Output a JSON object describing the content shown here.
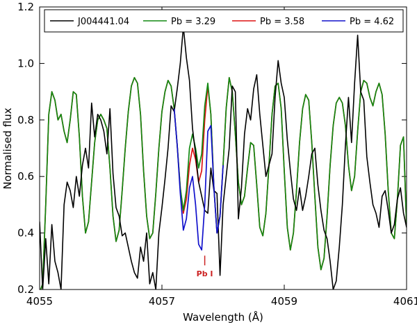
{
  "chart_data": {
    "type": "line",
    "xlabel": "Wavelength (Å)",
    "ylabel": "Normalised flux",
    "xlim": [
      4055,
      4061
    ],
    "ylim": [
      0.2,
      1.2
    ],
    "xticks": [
      4055,
      4057,
      4059,
      4061
    ],
    "xtick_labels": [
      "4055",
      "4057",
      "4059",
      "4061"
    ],
    "yticks": [
      0.2,
      0.4,
      0.6,
      0.8,
      1.0,
      1.2
    ],
    "ytick_labels": [
      "0.2",
      "0.4",
      "0.6",
      "0.8",
      "1.0",
      "1.2"
    ],
    "legend_position": "top",
    "annotation": {
      "text": "Pb I",
      "x": 4057.7,
      "y": 0.31,
      "color": "#cc2222"
    },
    "series": [
      {
        "name": "J004441.04",
        "color": "#000000",
        "x": [
          4055.0,
          4055.05,
          4055.1,
          4055.15,
          4055.2,
          4055.25,
          4055.3,
          4055.35,
          4055.4,
          4055.45,
          4055.5,
          4055.55,
          4055.6,
          4055.65,
          4055.7,
          4055.75,
          4055.8,
          4055.85,
          4055.9,
          4055.95,
          4056.0,
          4056.05,
          4056.1,
          4056.15,
          4056.2,
          4056.25,
          4056.3,
          4056.35,
          4056.4,
          4056.45,
          4056.5,
          4056.55,
          4056.6,
          4056.65,
          4056.7,
          4056.75,
          4056.8,
          4056.85,
          4056.9,
          4056.95,
          4057.0,
          4057.05,
          4057.1,
          4057.15,
          4057.2,
          4057.25,
          4057.3,
          4057.35,
          4057.4,
          4057.45,
          4057.5,
          4057.55,
          4057.6,
          4057.65,
          4057.7,
          4057.75,
          4057.8,
          4057.85,
          4057.9,
          4057.95,
          4058.0,
          4058.05,
          4058.1,
          4058.15,
          4058.2,
          4058.25,
          4058.3,
          4058.35,
          4058.4,
          4058.45,
          4058.5,
          4058.55,
          4058.6,
          4058.65,
          4058.7,
          4058.75,
          4058.8,
          4058.85,
          4058.9,
          4058.95,
          4059.0,
          4059.05,
          4059.1,
          4059.15,
          4059.2,
          4059.25,
          4059.3,
          4059.35,
          4059.4,
          4059.45,
          4059.5,
          4059.55,
          4059.6,
          4059.65,
          4059.7,
          4059.75,
          4059.8,
          4059.85,
          4059.9,
          4059.95,
          4060.0,
          4060.05,
          4060.1,
          4060.15,
          4060.2,
          4060.25,
          4060.3,
          4060.35,
          4060.4,
          4060.45,
          4060.5,
          4060.55,
          4060.6,
          4060.65,
          4060.7,
          4060.75,
          4060.8,
          4060.85,
          4060.9,
          4060.95,
          4061.0
        ],
        "y": [
          0.44,
          0.2,
          0.38,
          0.22,
          0.43,
          0.3,
          0.26,
          0.2,
          0.5,
          0.58,
          0.55,
          0.49,
          0.6,
          0.53,
          0.64,
          0.7,
          0.63,
          0.86,
          0.74,
          0.82,
          0.8,
          0.76,
          0.68,
          0.84,
          0.61,
          0.49,
          0.46,
          0.39,
          0.4,
          0.35,
          0.3,
          0.26,
          0.24,
          0.35,
          0.3,
          0.4,
          0.22,
          0.26,
          0.2,
          0.4,
          0.49,
          0.59,
          0.7,
          0.85,
          0.83,
          0.91,
          1.0,
          1.13,
          1.02,
          0.94,
          0.77,
          0.68,
          0.58,
          0.53,
          0.48,
          0.47,
          0.63,
          0.55,
          0.54,
          0.25,
          0.5,
          0.6,
          0.7,
          0.92,
          0.9,
          0.45,
          0.56,
          0.75,
          0.84,
          0.8,
          0.91,
          0.96,
          0.82,
          0.71,
          0.6,
          0.64,
          0.68,
          0.88,
          1.01,
          0.93,
          0.88,
          0.73,
          0.62,
          0.52,
          0.48,
          0.56,
          0.48,
          0.53,
          0.6,
          0.68,
          0.7,
          0.57,
          0.48,
          0.41,
          0.38,
          0.3,
          0.2,
          0.23,
          0.35,
          0.5,
          0.71,
          0.88,
          0.72,
          0.93,
          1.1,
          0.9,
          0.87,
          0.67,
          0.58,
          0.5,
          0.47,
          0.42,
          0.53,
          0.55,
          0.48,
          0.4,
          0.43,
          0.52,
          0.56,
          0.47,
          0.42
        ]
      },
      {
        "name": "Pb = 3.29",
        "color": "#118811",
        "x": [
          4055.0,
          4055.05,
          4055.1,
          4055.15,
          4055.2,
          4055.25,
          4055.3,
          4055.35,
          4055.4,
          4055.45,
          4055.5,
          4055.55,
          4055.6,
          4055.65,
          4055.7,
          4055.75,
          4055.8,
          4055.85,
          4055.9,
          4055.95,
          4056.0,
          4056.05,
          4056.1,
          4056.15,
          4056.2,
          4056.25,
          4056.3,
          4056.35,
          4056.4,
          4056.45,
          4056.5,
          4056.55,
          4056.6,
          4056.65,
          4056.7,
          4056.75,
          4056.8,
          4056.85,
          4056.9,
          4056.95,
          4057.0,
          4057.05,
          4057.1,
          4057.15,
          4057.2,
          4057.25,
          4057.3,
          4057.35,
          4057.4,
          4057.45,
          4057.5,
          4057.55,
          4057.6,
          4057.65,
          4057.7,
          4057.75,
          4057.8,
          4057.85,
          4057.9,
          4057.95,
          4058.0,
          4058.05,
          4058.1,
          4058.15,
          4058.2,
          4058.25,
          4058.3,
          4058.35,
          4058.4,
          4058.45,
          4058.5,
          4058.55,
          4058.6,
          4058.65,
          4058.7,
          4058.75,
          4058.8,
          4058.85,
          4058.9,
          4058.95,
          4059.0,
          4059.05,
          4059.1,
          4059.15,
          4059.2,
          4059.25,
          4059.3,
          4059.35,
          4059.4,
          4059.45,
          4059.5,
          4059.55,
          4059.6,
          4059.65,
          4059.7,
          4059.75,
          4059.8,
          4059.85,
          4059.9,
          4059.95,
          4060.0,
          4060.05,
          4060.1,
          4060.15,
          4060.2,
          4060.25,
          4060.3,
          4060.35,
          4060.4,
          4060.45,
          4060.5,
          4060.55,
          4060.6,
          4060.65,
          4060.7,
          4060.75,
          4060.8,
          4060.85,
          4060.9,
          4060.95,
          4061.0
        ],
        "y": [
          0.19,
          0.22,
          0.5,
          0.82,
          0.9,
          0.87,
          0.8,
          0.82,
          0.76,
          0.72,
          0.8,
          0.9,
          0.89,
          0.74,
          0.53,
          0.4,
          0.44,
          0.58,
          0.72,
          0.8,
          0.82,
          0.8,
          0.77,
          0.63,
          0.46,
          0.37,
          0.41,
          0.55,
          0.7,
          0.83,
          0.92,
          0.95,
          0.93,
          0.82,
          0.62,
          0.46,
          0.38,
          0.4,
          0.54,
          0.7,
          0.83,
          0.9,
          0.94,
          0.92,
          0.84,
          0.71,
          0.56,
          0.48,
          0.55,
          0.7,
          0.75,
          0.7,
          0.63,
          0.68,
          0.85,
          0.93,
          0.82,
          0.56,
          0.4,
          0.46,
          0.64,
          0.84,
          0.95,
          0.9,
          0.75,
          0.58,
          0.5,
          0.53,
          0.63,
          0.72,
          0.71,
          0.57,
          0.42,
          0.39,
          0.47,
          0.64,
          0.82,
          0.92,
          0.93,
          0.84,
          0.62,
          0.42,
          0.34,
          0.4,
          0.55,
          0.72,
          0.84,
          0.89,
          0.87,
          0.72,
          0.53,
          0.35,
          0.27,
          0.31,
          0.46,
          0.64,
          0.78,
          0.86,
          0.88,
          0.86,
          0.78,
          0.64,
          0.55,
          0.6,
          0.76,
          0.9,
          0.94,
          0.93,
          0.88,
          0.85,
          0.9,
          0.93,
          0.89,
          0.75,
          0.55,
          0.4,
          0.38,
          0.52,
          0.71,
          0.74,
          0.42
        ]
      },
      {
        "name": "Pb = 3.58",
        "color": "#dd1111",
        "x": [
          4055.0,
          4055.05,
          4055.1,
          4055.15,
          4055.2,
          4055.25,
          4055.3,
          4055.35,
          4055.4,
          4055.45,
          4055.5,
          4055.55,
          4055.6,
          4055.65,
          4055.7,
          4055.75,
          4055.8,
          4055.85,
          4055.9,
          4055.95,
          4056.0,
          4056.05,
          4056.1,
          4056.15,
          4056.2,
          4056.25,
          4056.3,
          4056.35,
          4056.4,
          4056.45,
          4056.5,
          4056.55,
          4056.6,
          4056.65,
          4056.7,
          4056.75,
          4056.8,
          4056.85,
          4056.9,
          4056.95,
          4057.0,
          4057.05,
          4057.1,
          4057.15,
          4057.2,
          4057.25,
          4057.3,
          4057.35,
          4057.4,
          4057.45,
          4057.5,
          4057.55,
          4057.6,
          4057.65,
          4057.7,
          4057.75,
          4057.8,
          4057.85,
          4057.9,
          4057.95,
          4058.0,
          4058.05,
          4058.1,
          4058.15,
          4058.2,
          4058.25,
          4058.3,
          4058.35,
          4058.4,
          4058.45,
          4058.5,
          4058.55,
          4058.6,
          4058.65,
          4058.7,
          4058.75,
          4058.8,
          4058.85,
          4058.9,
          4058.95,
          4059.0,
          4059.05,
          4059.1,
          4059.15,
          4059.2,
          4059.25,
          4059.3,
          4059.35,
          4059.4,
          4059.45,
          4059.5,
          4059.55,
          4059.6,
          4059.65,
          4059.7,
          4059.75,
          4059.8,
          4059.85,
          4059.9,
          4059.95,
          4060.0,
          4060.05,
          4060.1,
          4060.15,
          4060.2,
          4060.25,
          4060.3,
          4060.35,
          4060.4,
          4060.45,
          4060.5,
          4060.55,
          4060.6,
          4060.65,
          4060.7,
          4060.75,
          4060.8,
          4060.85,
          4060.9,
          4060.95,
          4061.0
        ],
        "y": [
          0.19,
          0.22,
          0.5,
          0.82,
          0.9,
          0.87,
          0.8,
          0.82,
          0.76,
          0.72,
          0.8,
          0.9,
          0.89,
          0.74,
          0.53,
          0.4,
          0.44,
          0.58,
          0.72,
          0.8,
          0.82,
          0.8,
          0.77,
          0.63,
          0.46,
          0.37,
          0.41,
          0.55,
          0.7,
          0.83,
          0.92,
          0.95,
          0.93,
          0.82,
          0.62,
          0.46,
          0.38,
          0.4,
          0.54,
          0.7,
          0.83,
          0.9,
          0.94,
          0.92,
          0.84,
          0.71,
          0.56,
          0.47,
          0.52,
          0.64,
          0.7,
          0.66,
          0.58,
          0.62,
          0.8,
          0.92,
          0.82,
          0.56,
          0.4,
          0.46,
          0.64,
          0.84,
          0.95,
          0.9,
          0.75,
          0.58,
          0.5,
          0.53,
          0.63,
          0.72,
          0.71,
          0.57,
          0.42,
          0.39,
          0.47,
          0.64,
          0.82,
          0.92,
          0.93,
          0.84,
          0.62,
          0.42,
          0.34,
          0.4,
          0.55,
          0.72,
          0.84,
          0.89,
          0.87,
          0.72,
          0.53,
          0.35,
          0.27,
          0.31,
          0.46,
          0.64,
          0.78,
          0.86,
          0.88,
          0.86,
          0.78,
          0.64,
          0.55,
          0.6,
          0.76,
          0.9,
          0.94,
          0.93,
          0.88,
          0.85,
          0.9,
          0.93,
          0.89,
          0.75,
          0.55,
          0.4,
          0.38,
          0.52,
          0.71,
          0.74,
          0.42
        ]
      },
      {
        "name": "Pb = 4.62",
        "color": "#1111cc",
        "x": [
          4057.2,
          4057.25,
          4057.3,
          4057.35,
          4057.4,
          4057.45,
          4057.5,
          4057.55,
          4057.6,
          4057.65,
          4057.7,
          4057.75,
          4057.8,
          4057.85,
          4057.9,
          4057.95,
          4058.0
        ],
        "y": [
          0.84,
          0.71,
          0.54,
          0.41,
          0.45,
          0.56,
          0.6,
          0.5,
          0.36,
          0.34,
          0.5,
          0.76,
          0.78,
          0.56,
          0.4,
          0.46,
          0.64
        ]
      }
    ]
  }
}
